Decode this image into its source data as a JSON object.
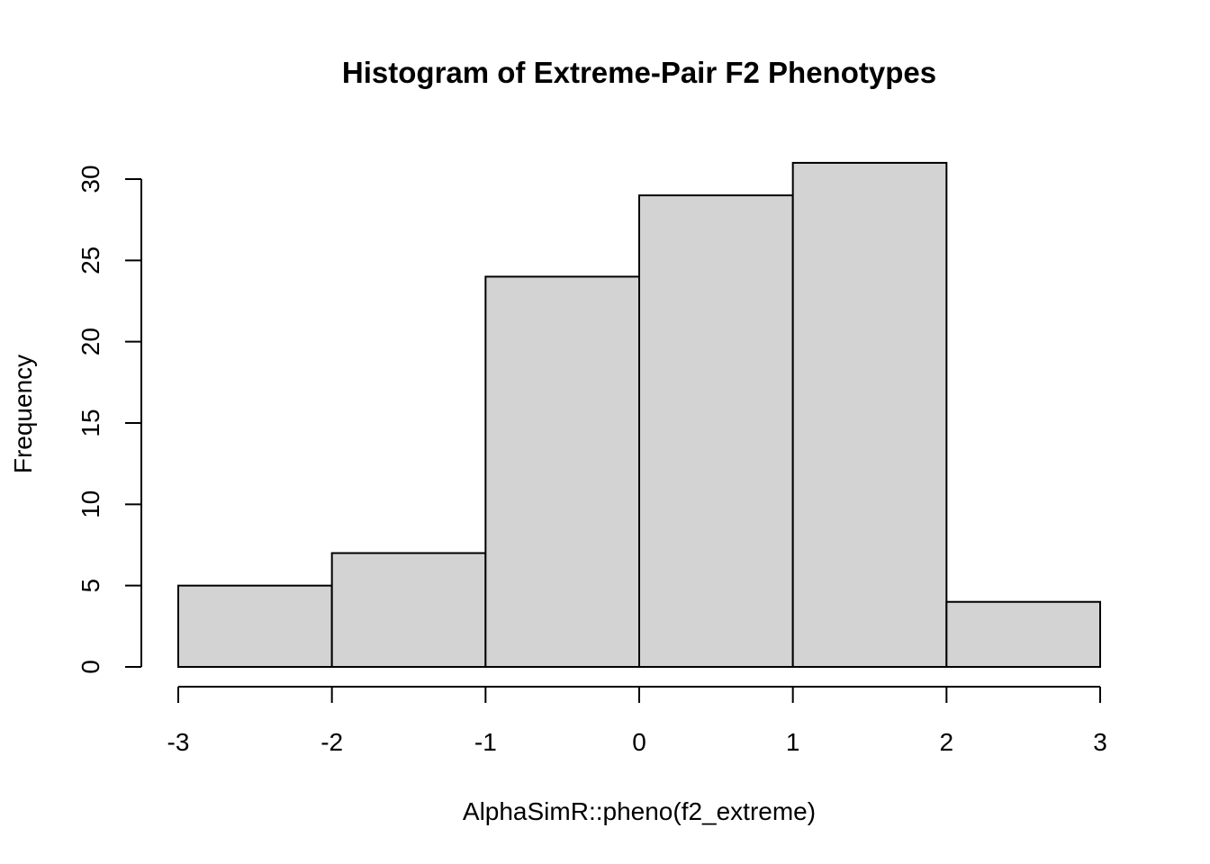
{
  "chart_data": {
    "type": "bar",
    "subtype": "histogram",
    "title": "Histogram of Extreme-Pair F2 Phenotypes",
    "xlabel": "AlphaSimR::pheno(f2_extreme)",
    "ylabel": "Frequency",
    "bin_edges": [
      -3,
      -2,
      -1,
      0,
      1,
      2,
      3
    ],
    "values": [
      5,
      7,
      24,
      29,
      31,
      4
    ],
    "xlim": [
      -3,
      3
    ],
    "ylim": [
      0,
      30
    ],
    "x_ticks": [
      -3,
      -2,
      -1,
      0,
      1,
      2,
      3
    ],
    "x_tick_labels": [
      "-3",
      "-2",
      "-1",
      "0",
      "1",
      "2",
      "3"
    ],
    "y_ticks": [
      0,
      5,
      10,
      15,
      20,
      25,
      30
    ],
    "y_tick_labels": [
      "0",
      "5",
      "10",
      "15",
      "20",
      "25",
      "30"
    ],
    "bar_color": "#d3d3d3",
    "edge_color": "#000000",
    "grid": false,
    "legend": "none"
  }
}
